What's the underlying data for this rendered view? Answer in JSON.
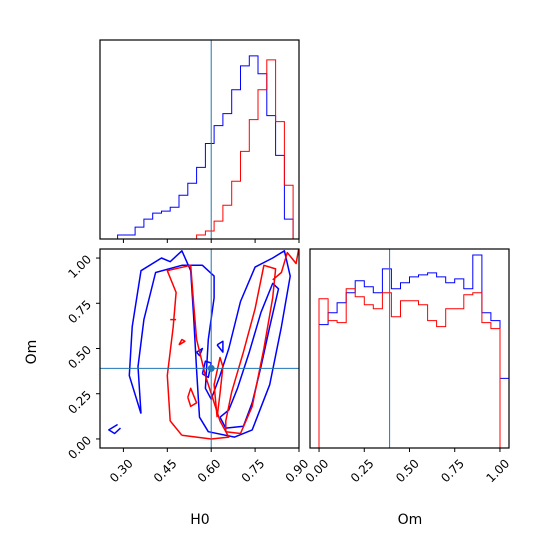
{
  "chart_data": {
    "type": "corner",
    "parameters": [
      "H0",
      "Om"
    ],
    "truth": {
      "H0": 0.6,
      "Om": 0.39
    },
    "colors": {
      "series_a": "#0000ff",
      "series_b": "#ff0000",
      "truth": "#1f77b4"
    },
    "h0_axis": {
      "range": [
        0.22,
        0.9
      ],
      "ticks": [
        0.3,
        0.45,
        0.6,
        0.75,
        0.9
      ],
      "tick_labels": [
        "0.30",
        "0.45",
        "0.60",
        "0.75",
        "0.90"
      ]
    },
    "om_axis": {
      "range": [
        -0.05,
        1.05
      ],
      "ticks": [
        0.0,
        0.25,
        0.5,
        0.75,
        1.0
      ],
      "tick_labels": [
        "0.00",
        "0.25",
        "0.50",
        "0.75",
        "1.00"
      ]
    },
    "h0_histogram": {
      "bin_edges": [
        0.22,
        0.25,
        0.28,
        0.31,
        0.34,
        0.37,
        0.4,
        0.43,
        0.46,
        0.49,
        0.52,
        0.55,
        0.58,
        0.61,
        0.64,
        0.67,
        0.7,
        0.73,
        0.76,
        0.79,
        0.82,
        0.85,
        0.88,
        0.91
      ],
      "series": [
        {
          "color_key": "series_a",
          "counts": [
            0.0,
            0.0,
            0.02,
            0.02,
            0.06,
            0.1,
            0.13,
            0.14,
            0.16,
            0.22,
            0.28,
            0.36,
            0.48,
            0.57,
            0.63,
            0.75,
            0.87,
            0.92,
            0.83,
            0.62,
            0.42,
            0.1,
            0.0
          ]
        },
        {
          "color_key": "series_b",
          "counts": [
            0.0,
            0.0,
            0.0,
            0.0,
            0.0,
            0.0,
            0.0,
            0.0,
            0.0,
            0.0,
            0.0,
            0.02,
            0.04,
            0.09,
            0.17,
            0.29,
            0.44,
            0.6,
            0.75,
            0.9,
            0.59,
            0.27,
            0.0
          ]
        }
      ]
    },
    "om_histogram": {
      "bin_edges": [
        -0.05,
        0.0,
        0.05,
        0.1,
        0.15,
        0.2,
        0.25,
        0.3,
        0.35,
        0.4,
        0.45,
        0.5,
        0.55,
        0.6,
        0.65,
        0.7,
        0.75,
        0.8,
        0.85,
        0.9,
        0.95,
        1.0,
        1.05
      ],
      "series": [
        {
          "color_key": "series_a",
          "counts": [
            0.0,
            0.62,
            0.68,
            0.73,
            0.78,
            0.84,
            0.81,
            0.78,
            0.9,
            0.8,
            0.83,
            0.86,
            0.87,
            0.88,
            0.86,
            0.83,
            0.85,
            0.8,
            0.97,
            0.68,
            0.64,
            0.35
          ]
        },
        {
          "color_key": "series_b",
          "counts": [
            0.0,
            0.75,
            0.64,
            0.63,
            0.8,
            0.76,
            0.72,
            0.7,
            0.78,
            0.66,
            0.74,
            0.74,
            0.72,
            0.64,
            0.61,
            0.7,
            0.7,
            0.77,
            0.78,
            0.63,
            0.6,
            0.0
          ]
        }
      ]
    },
    "contours": [
      {
        "color_key": "series_a",
        "points": [
          [
            0.28,
            0.08
          ],
          [
            0.25,
            0.05
          ],
          [
            0.27,
            0.03
          ],
          [
            0.29,
            0.06
          ]
        ]
      },
      {
        "color_key": "series_a",
        "points": [
          [
            0.36,
            0.14
          ],
          [
            0.32,
            0.35
          ],
          [
            0.33,
            0.62
          ],
          [
            0.36,
            0.93
          ],
          [
            0.43,
            1.0
          ],
          [
            0.46,
            0.98
          ],
          [
            0.5,
            1.04
          ],
          [
            0.53,
            0.93
          ],
          [
            0.54,
            0.68
          ],
          [
            0.55,
            0.38
          ],
          [
            0.56,
            0.12
          ],
          [
            0.59,
            0.04
          ],
          [
            0.68,
            0.01
          ],
          [
            0.74,
            0.05
          ],
          [
            0.8,
            0.3
          ],
          [
            0.84,
            0.62
          ],
          [
            0.87,
            0.9
          ],
          [
            0.85,
            1.04
          ],
          [
            0.81,
            1.0
          ],
          [
            0.75,
            0.95
          ],
          [
            0.7,
            0.76
          ],
          [
            0.66,
            0.5
          ],
          [
            0.63,
            0.35
          ],
          [
            0.6,
            0.22
          ],
          [
            0.58,
            0.28
          ],
          [
            0.59,
            0.55
          ],
          [
            0.61,
            0.78
          ],
          [
            0.61,
            0.9
          ],
          [
            0.57,
            0.96
          ],
          [
            0.5,
            0.96
          ],
          [
            0.41,
            0.92
          ],
          [
            0.37,
            0.66
          ],
          [
            0.35,
            0.4
          ],
          [
            0.36,
            0.14
          ]
        ]
      },
      {
        "color_key": "series_a",
        "points": [
          [
            0.57,
            0.36
          ],
          [
            0.59,
            0.34
          ],
          [
            0.6,
            0.42
          ],
          [
            0.58,
            0.43
          ],
          [
            0.57,
            0.36
          ]
        ]
      },
      {
        "color_key": "series_a",
        "points": [
          [
            0.63,
            0.12
          ],
          [
            0.65,
            0.06
          ],
          [
            0.71,
            0.07
          ],
          [
            0.74,
            0.2
          ],
          [
            0.77,
            0.4
          ],
          [
            0.8,
            0.62
          ],
          [
            0.83,
            0.83
          ],
          [
            0.81,
            0.86
          ],
          [
            0.77,
            0.7
          ],
          [
            0.73,
            0.48
          ],
          [
            0.69,
            0.28
          ],
          [
            0.66,
            0.16
          ],
          [
            0.63,
            0.12
          ]
        ]
      },
      {
        "color_key": "series_a",
        "points": [
          [
            0.62,
            0.52
          ],
          [
            0.64,
            0.48
          ],
          [
            0.64,
            0.54
          ],
          [
            0.62,
            0.52
          ]
        ]
      },
      {
        "color_key": "series_a",
        "points": [
          [
            0.55,
            0.48
          ],
          [
            0.56,
            0.46
          ],
          [
            0.57,
            0.5
          ],
          [
            0.55,
            0.48
          ]
        ]
      },
      {
        "color_key": "series_b",
        "points": [
          [
            0.5,
            0.02
          ],
          [
            0.46,
            0.1
          ],
          [
            0.45,
            0.35
          ],
          [
            0.47,
            0.62
          ],
          [
            0.48,
            0.81
          ],
          [
            0.45,
            0.93
          ],
          [
            0.53,
            0.96
          ],
          [
            0.54,
            0.75
          ],
          [
            0.55,
            0.55
          ],
          [
            0.58,
            0.35
          ],
          [
            0.63,
            0.1
          ],
          [
            0.66,
            0.01
          ],
          [
            0.6,
            0.0
          ],
          [
            0.5,
            0.02
          ]
        ]
      },
      {
        "color_key": "series_b",
        "points": [
          [
            0.52,
            0.23
          ],
          [
            0.53,
            0.18
          ],
          [
            0.55,
            0.2
          ],
          [
            0.53,
            0.28
          ],
          [
            0.52,
            0.23
          ]
        ]
      },
      {
        "color_key": "series_b",
        "points": [
          [
            0.65,
            0.04
          ],
          [
            0.7,
            0.03
          ],
          [
            0.74,
            0.18
          ],
          [
            0.78,
            0.5
          ],
          [
            0.81,
            0.78
          ],
          [
            0.82,
            0.94
          ],
          [
            0.78,
            0.96
          ],
          [
            0.75,
            0.72
          ],
          [
            0.71,
            0.48
          ],
          [
            0.67,
            0.26
          ],
          [
            0.65,
            0.1
          ],
          [
            0.65,
            0.04
          ]
        ]
      },
      {
        "color_key": "series_b",
        "points": [
          [
            0.62,
            0.12
          ],
          [
            0.63,
            0.25
          ],
          [
            0.64,
            0.4
          ],
          [
            0.63,
            0.45
          ],
          [
            0.61,
            0.3
          ],
          [
            0.62,
            0.12
          ]
        ]
      },
      {
        "color_key": "series_b",
        "points": [
          [
            0.81,
            0.88
          ],
          [
            0.84,
            0.92
          ],
          [
            0.86,
            1.03
          ],
          [
            0.89,
            0.97
          ],
          [
            0.9,
            1.06
          ]
        ]
      },
      {
        "color_key": "series_b",
        "points": [
          [
            0.46,
            0.66
          ],
          [
            0.48,
            0.66
          ]
        ]
      },
      {
        "color_key": "series_b",
        "points": [
          [
            0.49,
            0.52
          ],
          [
            0.51,
            0.54
          ],
          [
            0.5,
            0.55
          ],
          [
            0.49,
            0.52
          ]
        ]
      }
    ],
    "xlabel_h0": "H0",
    "xlabel_om": "Om",
    "ylabel_om": "Om"
  }
}
